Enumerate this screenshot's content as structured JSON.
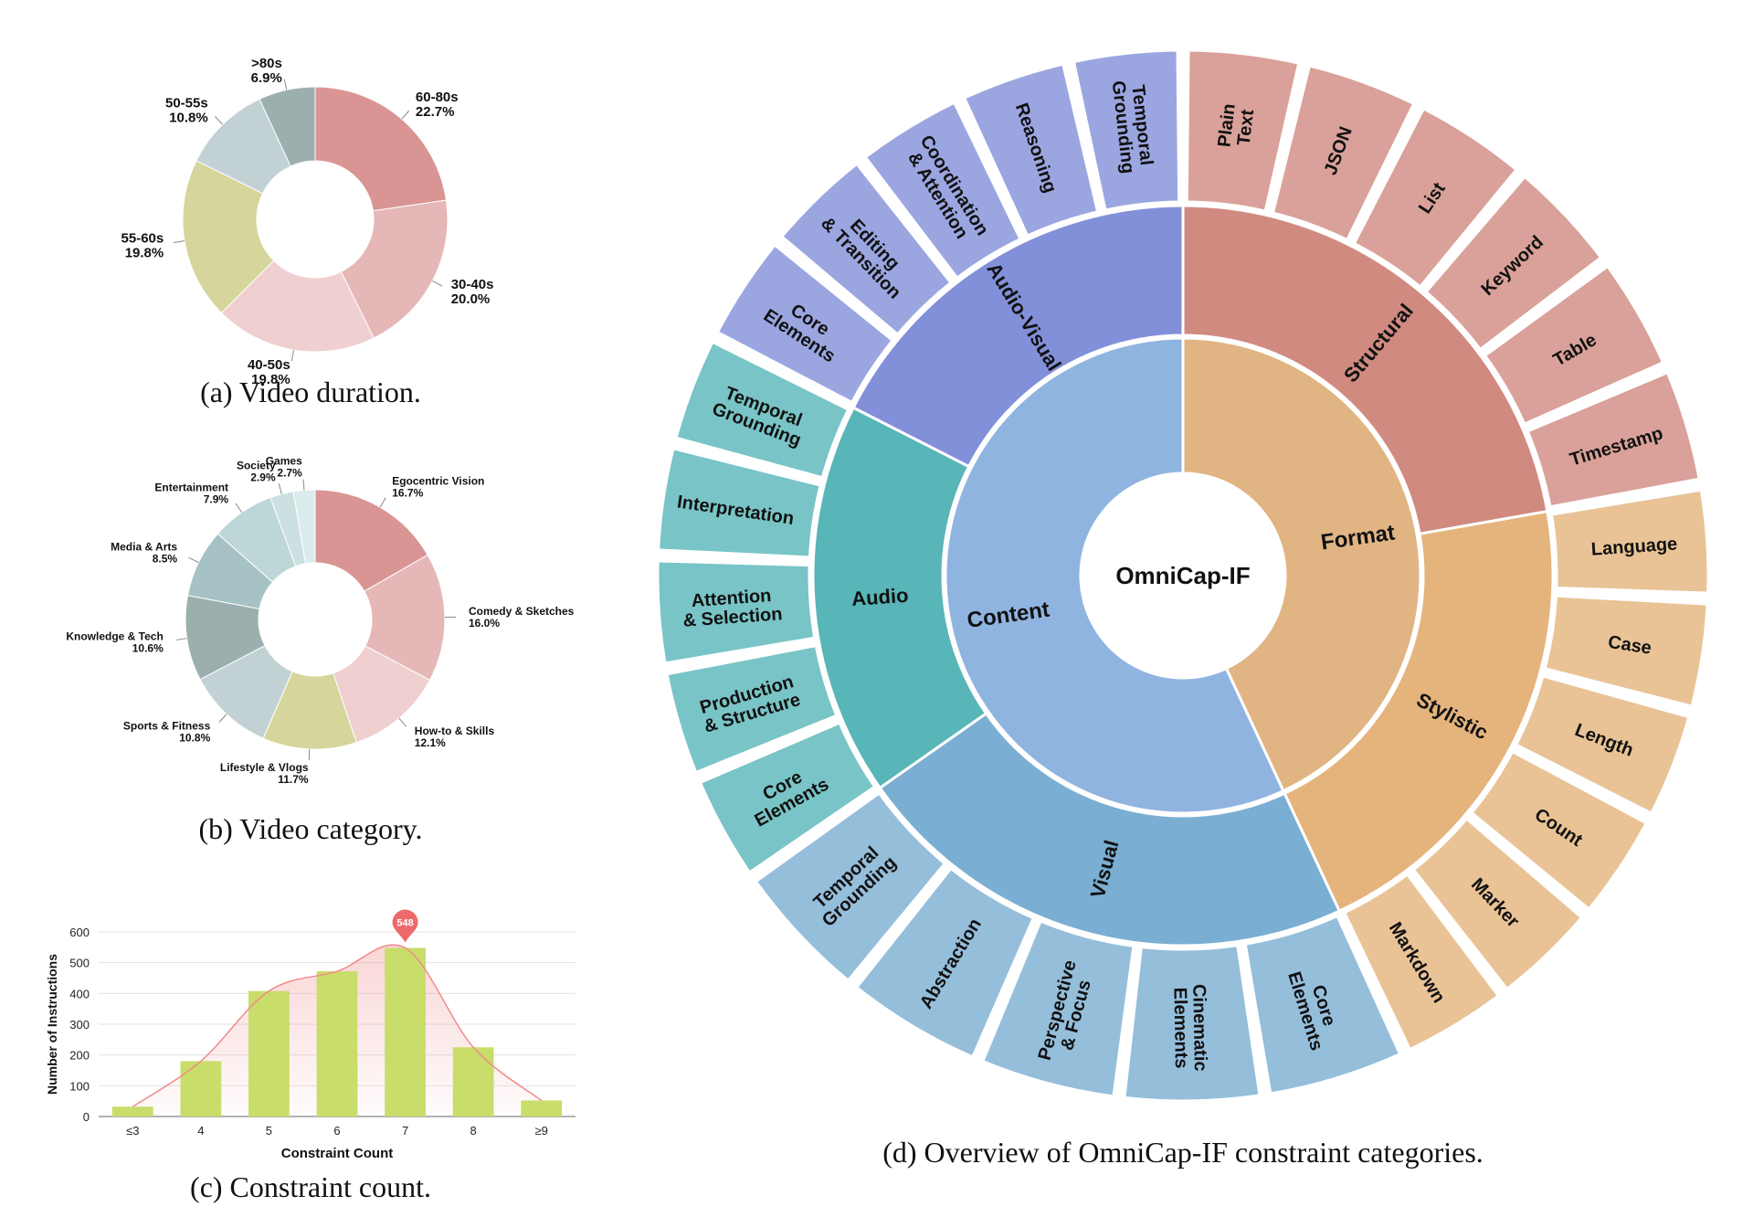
{
  "chart_data": [
    {
      "type": "pie",
      "variant": "donut",
      "caption": "(a) Video duration.",
      "slices": [
        {
          "label": "60-80s",
          "value": 22.7,
          "display": "22.7%",
          "color": "#d99594"
        },
        {
          "label": "30-40s",
          "value": 20.0,
          "display": "20.0%",
          "color": "#e5b7b7"
        },
        {
          "label": "40-50s",
          "value": 19.8,
          "display": "19.8%",
          "color": "#f0cfd0"
        },
        {
          "label": "55-60s",
          "value": 19.8,
          "display": "19.8%",
          "color": "#d6d59c"
        },
        {
          "label": "50-55s",
          "value": 10.8,
          "display": "10.8%",
          "color": "#c2d2d4"
        },
        {
          "label": ">80s",
          "value": 6.9,
          "display": "6.9%",
          "color": "#9bafae"
        }
      ]
    },
    {
      "type": "pie",
      "variant": "donut",
      "caption": "(b) Video category.",
      "slices": [
        {
          "label": "Egocentric Vision",
          "value": 16.7,
          "display": "16.7%",
          "color": "#d99594"
        },
        {
          "label": "Comedy & Sketches",
          "value": 16.0,
          "display": "16.0%",
          "color": "#e5b7b7"
        },
        {
          "label": "How-to & Skills",
          "value": 12.1,
          "display": "12.1%",
          "color": "#f0cfd0"
        },
        {
          "label": "Lifestyle & Vlogs",
          "value": 11.7,
          "display": "11.7%",
          "color": "#d6d59c"
        },
        {
          "label": "Sports & Fitness",
          "value": 10.8,
          "display": "10.8%",
          "color": "#c2d2d4"
        },
        {
          "label": "Knowledge & Tech",
          "value": 10.6,
          "display": "10.6%",
          "color": "#9bafae"
        },
        {
          "label": "Media & Arts",
          "value": 8.5,
          "display": "8.5%",
          "color": "#a6c2c4"
        },
        {
          "label": "Entertainment",
          "value": 7.9,
          "display": "7.9%",
          "color": "#bdd6d8"
        },
        {
          "label": "Society",
          "value": 2.9,
          "display": "2.9%",
          "color": "#cde0e1"
        },
        {
          "label": "Games",
          "value": 2.7,
          "display": "2.7%",
          "color": "#dcebec"
        }
      ]
    },
    {
      "type": "bar",
      "caption": "(c) Constraint count.",
      "categories": [
        "≤3",
        "4",
        "5",
        "6",
        "7",
        "8",
        "≥9"
      ],
      "values": [
        32,
        180,
        408,
        472,
        548,
        225,
        52
      ],
      "xlabel": "Constraint Count",
      "ylabel": "Number of Instructions",
      "ylim": [
        0,
        600
      ],
      "yticks": [
        0,
        100,
        200,
        300,
        400,
        500,
        600
      ],
      "highlight": {
        "category": "7",
        "label": "548"
      },
      "bar_color": "#c8dd6a",
      "curve_color": "#f08a8a",
      "grid": true
    },
    {
      "type": "sunburst",
      "caption": "(d) Overview of OmniCap-IF constraint categories.",
      "center": "OmniCap-IF",
      "children": [
        {
          "name": "Format",
          "color": "#e0b583",
          "children": [
            {
              "name": "Structural",
              "color": "#d08a80",
              "children": [
                "Plain Text",
                "JSON",
                "List",
                "Keyword",
                "Table",
                "Timestamp"
              ]
            },
            {
              "name": "Stylistic",
              "color": "#e4b47c",
              "children": [
                "Language",
                "Case",
                "Length",
                "Count",
                "Marker",
                "Markdown"
              ]
            }
          ]
        },
        {
          "name": "Content",
          "color": "#90b4e0",
          "children": [
            {
              "name": "Visual",
              "color": "#7aaed2",
              "children": [
                "Core Elements",
                "Cinematic Elements",
                "Perspective & Focus",
                "Abstraction",
                "Temporal Grounding"
              ]
            },
            {
              "name": "Audio",
              "color": "#58b5b8",
              "children": [
                "Core Elements",
                "Production & Structure",
                "Attention & Selection",
                "Interpretation",
                "Temporal Grounding"
              ]
            },
            {
              "name": "Audio-Visual",
              "color": "#8290da",
              "children": [
                "Core Elements",
                "Editing & Transition",
                "Coordination & Attention",
                "Reasoning",
                "Temporal Grounding"
              ]
            }
          ]
        }
      ]
    }
  ]
}
